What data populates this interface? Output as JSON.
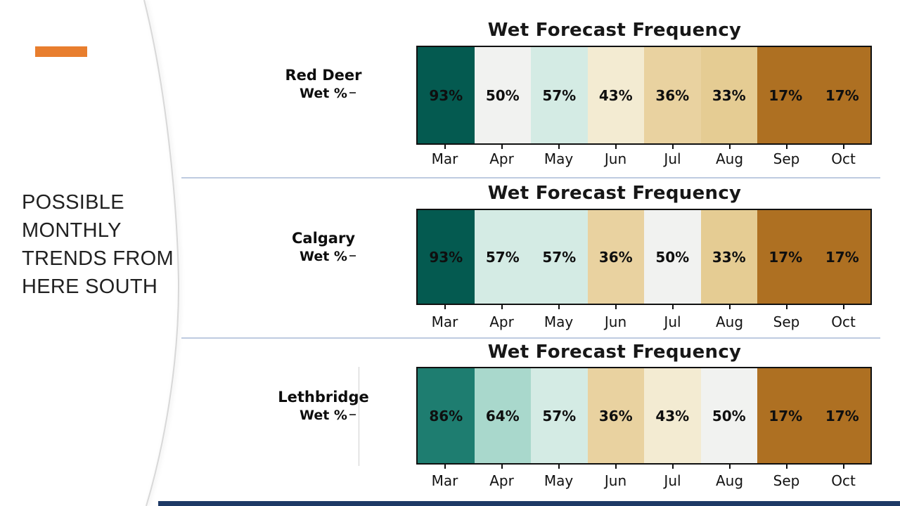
{
  "slide": {
    "panel_title_lines": [
      "POSSIBLE",
      "MONTHLY",
      "TRENDS FROM",
      "HERE SOUTH"
    ],
    "accent_color": "#e87e2e",
    "divider_color": "#b3c2da",
    "footer_color": "#1e3a66"
  },
  "chart_data": [
    {
      "type": "heatmap",
      "title": "Wet Forecast Frequency",
      "row_label": "Red Deer",
      "row_sublabel": "Wet %",
      "categories": [
        "Mar",
        "Apr",
        "May",
        "Jun",
        "Jul",
        "Aug",
        "Sep",
        "Oct"
      ],
      "values": [
        93,
        50,
        57,
        43,
        36,
        33,
        17,
        17
      ],
      "value_suffix": "%",
      "cell_colors": [
        "#045a50",
        "#f1f2f0",
        "#d4ebe4",
        "#f3ebd2",
        "#e9d2a0",
        "#e5cc93",
        "#ae7022",
        "#ae7022"
      ],
      "legend": "none",
      "grid": false
    },
    {
      "type": "heatmap",
      "title": "Wet Forecast Frequency",
      "row_label": "Calgary",
      "row_sublabel": "Wet %",
      "categories": [
        "Mar",
        "Apr",
        "May",
        "Jun",
        "Jul",
        "Aug",
        "Sep",
        "Oct"
      ],
      "values": [
        93,
        57,
        57,
        36,
        50,
        33,
        17,
        17
      ],
      "value_suffix": "%",
      "cell_colors": [
        "#045a50",
        "#d4ebe4",
        "#d4ebe4",
        "#e9d2a0",
        "#f1f2f0",
        "#e5cc93",
        "#ae7022",
        "#ae7022"
      ],
      "legend": "none",
      "grid": false
    },
    {
      "type": "heatmap",
      "title": "Wet Forecast Frequency",
      "row_label": "Lethbridge",
      "row_sublabel": "Wet %",
      "categories": [
        "Mar",
        "Apr",
        "May",
        "Jun",
        "Jul",
        "Aug",
        "Sep",
        "Oct"
      ],
      "values": [
        86,
        64,
        57,
        36,
        43,
        50,
        17,
        17
      ],
      "value_suffix": "%",
      "cell_colors": [
        "#1e7d70",
        "#a9d8cc",
        "#d4ebe4",
        "#e9d2a0",
        "#f3ebd2",
        "#f1f2f0",
        "#ae7022",
        "#ae7022"
      ],
      "legend": "none",
      "grid": false
    }
  ]
}
